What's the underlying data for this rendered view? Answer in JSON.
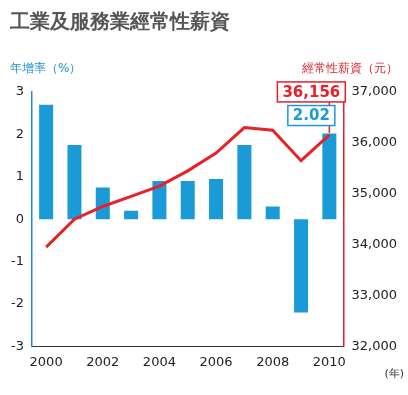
{
  "chart_data": {
    "type": "bar",
    "title": "工業及服務業經常性薪資",
    "ylabel": "年增率（%）",
    "y2label": "經常性薪資（元）",
    "xlabel": "(年)",
    "categories": [
      "2000",
      null,
      "2002",
      null,
      "2004",
      null,
      "2006",
      null,
      "2008",
      null,
      "2010"
    ],
    "series": [
      {
        "type": "bar",
        "color": "#1a9bd7",
        "values": [
          2.7,
          1.75,
          0.75,
          0.2,
          0.9,
          0.9,
          0.95,
          1.75,
          0.3,
          -2.2,
          2.02
        ]
      },
      {
        "type": "line",
        "axis": "y2",
        "color": "#e8202a",
        "values": [
          33950,
          34500,
          34750,
          34950,
          35150,
          35450,
          35800,
          36300,
          36250,
          35650,
          36156
        ]
      }
    ],
    "ylim": [
      -3,
      3
    ],
    "yticks": [
      -3,
      -2,
      -1,
      0,
      1,
      2,
      3
    ],
    "y2lim": [
      32000,
      37000
    ],
    "y2ticks": [
      {
        "value": 32000,
        "label": "32,000"
      },
      {
        "value": 33000,
        "label": "33,000"
      },
      {
        "value": 34000,
        "label": "34,000"
      },
      {
        "value": 35000,
        "label": "35,000"
      },
      {
        "value": 36000,
        "label": "36,000"
      },
      {
        "value": 37000,
        "label": "37,000"
      }
    ],
    "annotations": [
      {
        "text": "36,156",
        "x": "2010",
        "y": 36156,
        "axis": "y2",
        "color": "#e8202a"
      },
      {
        "text": "2.02",
        "x": "2010",
        "y": 2.02,
        "color": "#1a9bd7"
      }
    ],
    "grid": false,
    "data_labels": false
  }
}
